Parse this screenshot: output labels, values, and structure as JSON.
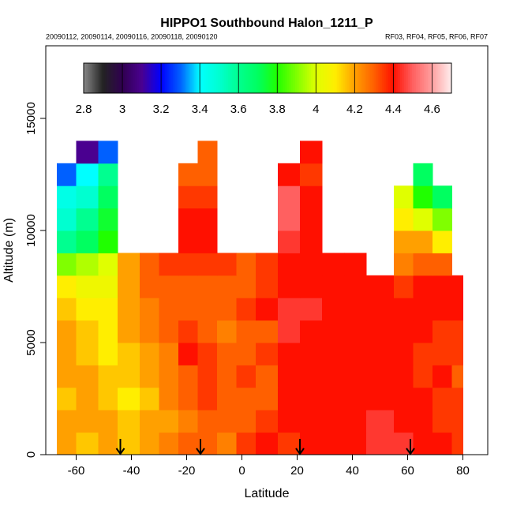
{
  "chart_data": {
    "type": "heatmap",
    "title": "HIPPO1 Southbound Halon_1211_P",
    "subtitle_left": "20090112, 20090114, 20090116, 20090118, 20090120",
    "subtitle_right": "RF03, RF04, RF05, RF06, RF07",
    "x_label": "Latitude",
    "y_label": "Altitude (m)",
    "xlim": [
      -71,
      89
    ],
    "ylim": [
      0,
      18240
    ],
    "xticks": [
      -60,
      -40,
      -20,
      0,
      20,
      40,
      60,
      80
    ],
    "yticks": [
      0,
      5000,
      10000,
      15000
    ],
    "x_bins": [
      -67,
      -60,
      -52,
      -45,
      -37,
      -30,
      -23,
      -16,
      -9,
      -2,
      5,
      13,
      21,
      29,
      37,
      45,
      55,
      62,
      69,
      76,
      80
    ],
    "y_bins": [
      0,
      1000,
      2000,
      3000,
      4000,
      5000,
      6000,
      7000,
      8000,
      9000,
      10000,
      11000,
      12000,
      13000,
      14000
    ],
    "values": [
      [
        4.2,
        4.15,
        4.2,
        4.15,
        4.2,
        4.25,
        4.3,
        4.3,
        4.25,
        4.35,
        4.4,
        4.35,
        4.4,
        4.4,
        4.4,
        4.45,
        4.45,
        4.4,
        4.4,
        4.35
      ],
      [
        4.2,
        4.2,
        4.2,
        4.15,
        4.2,
        4.2,
        4.25,
        4.3,
        4.3,
        4.3,
        4.35,
        4.4,
        4.4,
        4.4,
        4.4,
        4.45,
        4.4,
        4.4,
        4.35,
        4.35
      ],
      [
        4.15,
        4.2,
        4.15,
        4.1,
        4.15,
        4.25,
        4.3,
        4.35,
        4.3,
        4.3,
        4.3,
        4.4,
        4.4,
        4.4,
        4.4,
        4.4,
        4.4,
        4.4,
        4.35,
        4.35
      ],
      [
        4.2,
        4.2,
        4.15,
        4.15,
        4.2,
        4.25,
        4.3,
        4.35,
        4.3,
        4.35,
        4.3,
        4.4,
        4.4,
        4.4,
        4.4,
        4.4,
        4.4,
        4.35,
        4.4,
        4.3
      ],
      [
        4.2,
        4.15,
        4.1,
        4.15,
        4.2,
        4.25,
        4.4,
        4.35,
        4.3,
        4.3,
        4.35,
        4.4,
        4.4,
        4.4,
        4.4,
        4.4,
        4.4,
        4.35,
        4.35,
        4.35
      ],
      [
        4.2,
        4.15,
        4.1,
        4.2,
        4.25,
        4.3,
        4.35,
        4.3,
        4.25,
        4.3,
        4.3,
        4.45,
        4.4,
        4.4,
        4.4,
        4.4,
        4.4,
        4.4,
        4.35,
        4.35
      ],
      [
        4.15,
        4.1,
        4.1,
        4.2,
        4.25,
        4.3,
        4.3,
        4.3,
        4.3,
        4.35,
        4.4,
        4.45,
        4.45,
        4.4,
        4.4,
        4.4,
        4.4,
        4.4,
        4.4,
        4.4
      ],
      [
        4.1,
        4.05,
        4.05,
        4.2,
        4.3,
        4.3,
        4.3,
        4.3,
        4.3,
        4.3,
        4.35,
        4.4,
        4.4,
        4.4,
        4.4,
        4.4,
        4.35,
        4.4,
        4.4,
        4.4
      ],
      [
        3.9,
        3.95,
        4.0,
        4.2,
        4.3,
        4.35,
        4.35,
        4.35,
        4.35,
        4.3,
        4.35,
        4.4,
        4.4,
        4.4,
        4.4,
        null,
        4.25,
        4.3,
        4.3,
        null
      ],
      [
        3.6,
        3.7,
        3.8,
        null,
        null,
        null,
        4.4,
        4.4,
        null,
        null,
        null,
        4.45,
        4.4,
        null,
        null,
        null,
        4.2,
        4.2,
        4.1,
        null
      ],
      [
        3.5,
        3.6,
        3.75,
        null,
        null,
        null,
        4.4,
        4.4,
        null,
        null,
        null,
        4.5,
        4.4,
        null,
        null,
        null,
        4.1,
        4.0,
        3.9,
        null
      ],
      [
        3.45,
        3.5,
        3.7,
        null,
        null,
        null,
        4.35,
        4.35,
        null,
        null,
        null,
        4.5,
        4.4,
        null,
        null,
        null,
        4.0,
        3.8,
        3.7,
        null
      ],
      [
        3.3,
        3.4,
        3.6,
        null,
        null,
        null,
        4.3,
        4.3,
        null,
        null,
        null,
        4.4,
        4.35,
        null,
        null,
        null,
        null,
        3.7,
        null,
        null
      ],
      [
        null,
        3.1,
        3.3,
        null,
        null,
        null,
        null,
        4.3,
        null,
        null,
        null,
        null,
        4.4,
        null,
        null,
        null,
        null,
        null,
        null,
        null
      ]
    ],
    "zlim": [
      2.8,
      4.7
    ],
    "zticks": [
      2.8,
      3.0,
      3.2,
      3.4,
      3.6,
      3.8,
      4.0,
      4.2,
      4.4,
      4.6
    ],
    "color_stops": [
      "#888888",
      "#222222",
      "#300050",
      "#4a0090",
      "#0000ff",
      "#0060ff",
      "#00ffff",
      "#00ffd0",
      "#00ff90",
      "#00ff60",
      "#20ff00",
      "#80ff00",
      "#e0ff00",
      "#ffee00",
      "#ffa000",
      "#ff6000",
      "#ff1000",
      "#ff6060",
      "#ffa0a0",
      "#ffeeee"
    ],
    "arrows_x": [
      -44,
      -15,
      21,
      61
    ]
  }
}
